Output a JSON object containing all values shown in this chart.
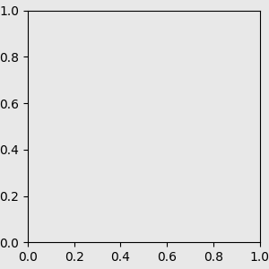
{
  "bg_color": "#e8e8e8",
  "bond_color": "#1a1a1a",
  "O_color": "#ff0000",
  "N_color": "#0000ee",
  "S_color": "#cccc00",
  "Cl_color": "#33bb00",
  "figsize": [
    3.0,
    3.0
  ],
  "dpi": 100,
  "lw": 1.5
}
